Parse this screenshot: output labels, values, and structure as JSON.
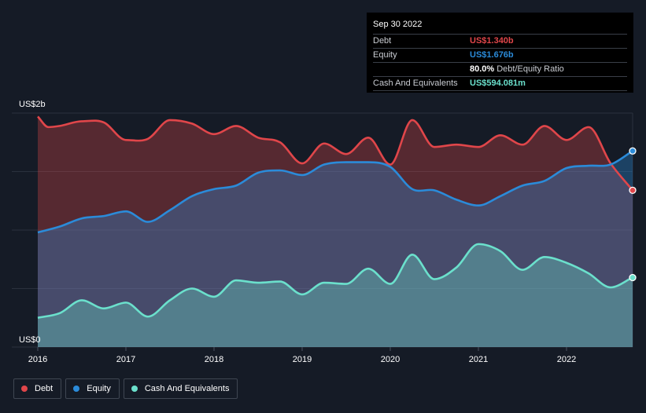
{
  "colors": {
    "debt": "#e0464a",
    "equity": "#2b8bd9",
    "cash": "#6be0cc",
    "background": "#151b26"
  },
  "tooltip": {
    "date": "Sep 30 2022",
    "debt_label": "Debt",
    "debt_value": "US$1.340b",
    "equity_label": "Equity",
    "equity_value": "US$1.676b",
    "ratio_pct": "80.0%",
    "ratio_label": "Debt/Equity Ratio",
    "cash_label": "Cash And Equivalents",
    "cash_value": "US$594.081m"
  },
  "legend": {
    "debt_label": "Debt",
    "equity_label": "Equity",
    "cash_label": "Cash And Equivalents"
  },
  "chart_data": {
    "type": "area",
    "title": "",
    "xlabel": "",
    "ylabel": "",
    "ylim": [
      0,
      2.0
    ],
    "xlim": [
      2016.0,
      2022.75
    ],
    "y_tick_labels": [
      {
        "value": 2.0,
        "label": "US$2b"
      },
      {
        "value": 0.0,
        "label": "US$0"
      }
    ],
    "x_ticks": [
      {
        "value": 2016,
        "label": "2016"
      },
      {
        "value": 2017,
        "label": "2017"
      },
      {
        "value": 2018,
        "label": "2018"
      },
      {
        "value": 2019,
        "label": "2019"
      },
      {
        "value": 2020,
        "label": "2020"
      },
      {
        "value": 2021,
        "label": "2021"
      },
      {
        "value": 2022,
        "label": "2022"
      }
    ],
    "series": [
      {
        "name": "Debt",
        "key": "debt",
        "x": [
          2016.0,
          2016.12,
          2016.25,
          2016.5,
          2016.75,
          2017.0,
          2017.25,
          2017.5,
          2017.75,
          2018.0,
          2018.25,
          2018.5,
          2018.75,
          2019.0,
          2019.25,
          2019.5,
          2019.75,
          2020.0,
          2020.25,
          2020.5,
          2020.75,
          2021.0,
          2021.25,
          2021.5,
          2021.75,
          2022.0,
          2022.25,
          2022.5,
          2022.75
        ],
        "values": [
          1.97,
          1.88,
          1.89,
          1.93,
          1.92,
          1.77,
          1.78,
          1.94,
          1.91,
          1.82,
          1.89,
          1.79,
          1.75,
          1.57,
          1.74,
          1.65,
          1.79,
          1.56,
          1.94,
          1.71,
          1.73,
          1.71,
          1.81,
          1.73,
          1.89,
          1.77,
          1.88,
          1.57,
          1.34
        ]
      },
      {
        "name": "Equity",
        "key": "equity",
        "x": [
          2016.0,
          2016.25,
          2016.5,
          2016.75,
          2017.0,
          2017.25,
          2017.5,
          2017.75,
          2018.0,
          2018.25,
          2018.5,
          2018.75,
          2019.0,
          2019.25,
          2019.5,
          2019.75,
          2020.0,
          2020.25,
          2020.5,
          2020.75,
          2021.0,
          2021.25,
          2021.5,
          2021.75,
          2022.0,
          2022.25,
          2022.5,
          2022.75
        ],
        "values": [
          0.98,
          1.03,
          1.1,
          1.12,
          1.16,
          1.07,
          1.17,
          1.29,
          1.35,
          1.38,
          1.49,
          1.51,
          1.47,
          1.56,
          1.58,
          1.58,
          1.54,
          1.35,
          1.34,
          1.26,
          1.21,
          1.29,
          1.38,
          1.42,
          1.53,
          1.55,
          1.56,
          1.676
        ]
      },
      {
        "name": "Cash And Equivalents",
        "key": "cash",
        "x": [
          2016.0,
          2016.25,
          2016.5,
          2016.75,
          2017.0,
          2017.25,
          2017.5,
          2017.75,
          2018.0,
          2018.25,
          2018.5,
          2018.75,
          2019.0,
          2019.25,
          2019.5,
          2019.75,
          2020.0,
          2020.25,
          2020.5,
          2020.75,
          2021.0,
          2021.25,
          2021.5,
          2021.75,
          2022.0,
          2022.25,
          2022.5,
          2022.75
        ],
        "values": [
          0.25,
          0.29,
          0.4,
          0.33,
          0.38,
          0.26,
          0.4,
          0.5,
          0.43,
          0.57,
          0.55,
          0.56,
          0.45,
          0.55,
          0.54,
          0.67,
          0.54,
          0.79,
          0.58,
          0.68,
          0.88,
          0.82,
          0.66,
          0.77,
          0.72,
          0.63,
          0.51,
          0.594
        ]
      }
    ]
  }
}
